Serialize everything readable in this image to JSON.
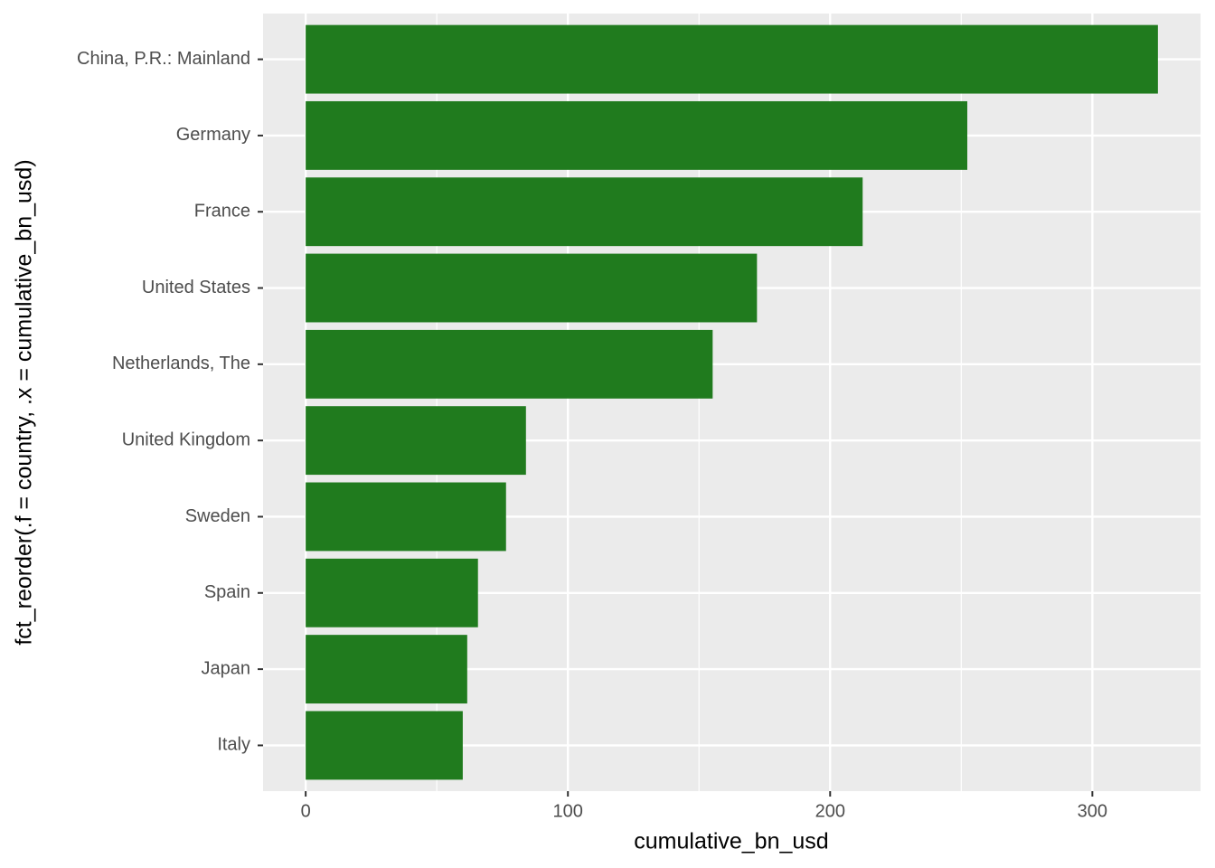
{
  "chart_data": {
    "type": "barh",
    "xlabel": "cumulative_bn_usd",
    "ylabel": "fct_reorder(.f = country, .x = cumulative_bn_usd)",
    "categories": [
      "China, P.R.: Mainland",
      "Germany",
      "France",
      "United States",
      "Netherlands, The",
      "United Kingdom",
      "Sweden",
      "Spain",
      "Japan",
      "Italy"
    ],
    "values": [
      325,
      252.3,
      212.4,
      172.1,
      155.2,
      84.0,
      76.4,
      65.7,
      61.6,
      59.9
    ],
    "color": "#207b1e",
    "xlim": [
      -16.25,
      341.25
    ],
    "xticks": [
      0,
      100,
      200,
      300
    ],
    "xminor": [
      50,
      150,
      250
    ],
    "grid": true
  }
}
